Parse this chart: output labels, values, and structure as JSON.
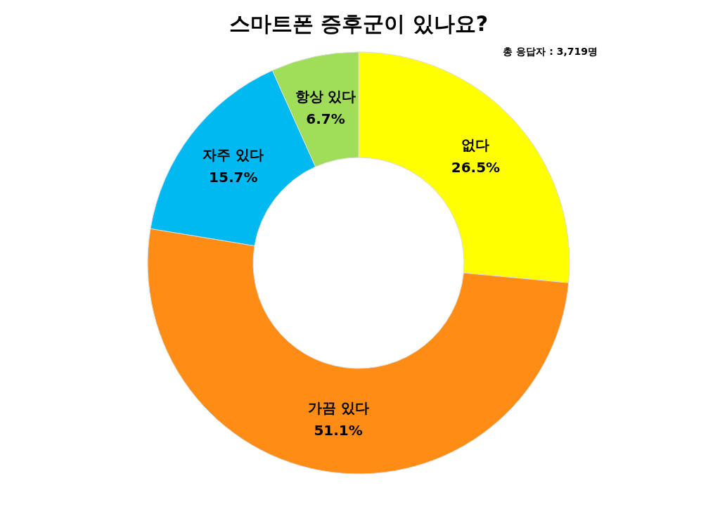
{
  "chart_data": {
    "type": "donut",
    "title": "스마트폰 증후군이 있나요?",
    "annotations": [
      "총 응답자 : 3,719명"
    ],
    "categories": [
      "없다",
      "가끔 있다",
      "자주 있다",
      "항상 있다"
    ],
    "values": [
      26.5,
      51.1,
      15.7,
      6.7
    ],
    "value_labels": [
      "26.5%",
      "51.1%",
      "15.7%",
      "6.7%"
    ],
    "colors": [
      "#ffff00",
      "#ff8c14",
      "#00b9f1",
      "#a0de5a"
    ],
    "legend": false
  }
}
